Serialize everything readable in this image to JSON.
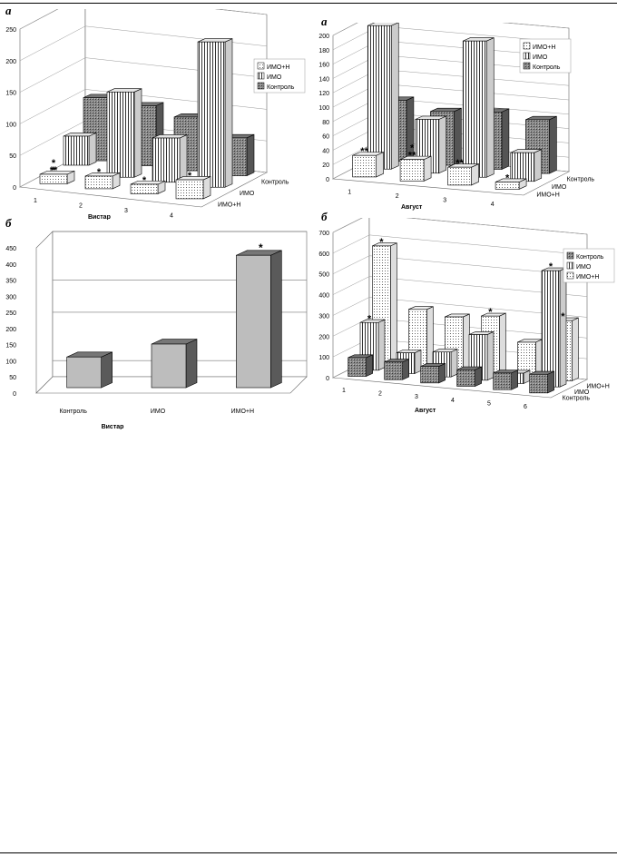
{
  "panels": {
    "top_left_letter": "а",
    "top_right_letter": "а",
    "bottom_left_letter": "б",
    "bottom_right_letter": "б"
  },
  "chart_data": [
    {
      "id": "tl",
      "type": "bar",
      "title": "",
      "xlabel": "Вистар",
      "ylabel": "",
      "ylim": [
        0,
        250
      ],
      "yticks": [
        0,
        50,
        100,
        150,
        200,
        250
      ],
      "categories": [
        "1",
        "2",
        "3",
        "4"
      ],
      "depth_labels": [
        "Контроль",
        "ИМО",
        "ИМО+Н"
      ],
      "legend": [
        "ИМО+Н",
        "ИМО",
        "Контроль"
      ],
      "legend_position": "right",
      "series": [
        {
          "name": "Контроль",
          "values": [
            100,
            95,
            85,
            60
          ]
        },
        {
          "name": "ИМО",
          "values": [
            0,
            135,
            70,
            230
          ]
        },
        {
          "name": "ИМО+Н",
          "values": [
            15,
            20,
            15,
            30
          ]
        }
      ],
      "series_aux": [
        {
          "values": [
            40,
            0,
            0,
            0
          ]
        }
      ],
      "stars": [
        {
          "series": 2,
          "index": 0,
          "text": "**"
        },
        {
          "series": 2,
          "index": 0,
          "text": "*",
          "offset": 1
        },
        {
          "series": 3,
          "index": 0,
          "text": "*"
        },
        {
          "series": 2,
          "index": 1,
          "text": "*"
        },
        {
          "series": 2,
          "index": 2,
          "text": "*"
        },
        {
          "series": 2,
          "index": 3,
          "text": "*"
        }
      ]
    },
    {
      "id": "tr",
      "type": "bar",
      "title": "",
      "xlabel": "Август",
      "ylabel": "",
      "ylim": [
        0,
        200
      ],
      "yticks": [
        0,
        20,
        40,
        60,
        80,
        100,
        120,
        140,
        160,
        180,
        200
      ],
      "categories": [
        "1",
        "2",
        "3",
        "4"
      ],
      "depth_labels": [
        "Контроль",
        "ИМО",
        "ИМО+Н"
      ],
      "legend": [
        "ИМО+Н",
        "ИМО",
        "Контроль"
      ],
      "legend_position": "right",
      "series": [
        {
          "name": "Контроль",
          "values": [
            85,
            75,
            80,
            75
          ]
        },
        {
          "name": "ИМО",
          "values": [
            200,
            75,
            190,
            40
          ]
        },
        {
          "name": "ИМО+Н",
          "values": [
            30,
            30,
            25,
            10
          ]
        }
      ],
      "stars": [
        {
          "series": 2,
          "index": 0,
          "text": "**"
        },
        {
          "series": 2,
          "index": 1,
          "text": "**"
        },
        {
          "series": 2,
          "index": 1,
          "text": "*",
          "offset": 1
        },
        {
          "series": 2,
          "index": 2,
          "text": "**"
        },
        {
          "series": 2,
          "index": 3,
          "text": "*"
        }
      ]
    },
    {
      "id": "bl",
      "type": "bar",
      "title": "",
      "xlabel": "Вистар",
      "ylabel": "",
      "ylim": [
        0,
        450
      ],
      "yticks": [
        0,
        50,
        100,
        150,
        200,
        250,
        300,
        350,
        400,
        450
      ],
      "categories": [
        "Контроль",
        "ИМО",
        "ИМО+Н"
      ],
      "values": [
        95,
        135,
        410
      ],
      "stars": [
        {
          "index": 2,
          "text": "*"
        }
      ]
    },
    {
      "id": "br",
      "type": "bar",
      "title": "",
      "xlabel": "Август",
      "ylabel": "",
      "ylim": [
        0,
        700
      ],
      "yticks": [
        0,
        100,
        200,
        300,
        400,
        500,
        600,
        700
      ],
      "categories": [
        "1",
        "2",
        "3",
        "4",
        "5",
        "6"
      ],
      "depth_labels": [
        "ИМО+Н",
        "ИМО",
        "Контроль"
      ],
      "legend": [
        "Контроль",
        "ИМО",
        "ИМО+Н"
      ],
      "legend_position": "right",
      "series": [
        {
          "name": "Контроль",
          "values": [
            90,
            85,
            80,
            80,
            80,
            90
          ]
        },
        {
          "name": "ИМО",
          "values": [
            230,
            100,
            120,
            220,
            50,
            560
          ]
        },
        {
          "name": "ИМО+Н",
          "values": [
            570,
            280,
            260,
            280,
            170,
            290
          ]
        }
      ],
      "stars": [
        {
          "series": 1,
          "index": 0,
          "text": "*"
        },
        {
          "series": 2,
          "index": 0,
          "text": "*"
        },
        {
          "series": 2,
          "index": 3,
          "text": "*"
        },
        {
          "series": 1,
          "index": 5,
          "text": "*"
        },
        {
          "series": 2,
          "index": 5,
          "text": "*"
        }
      ]
    }
  ]
}
